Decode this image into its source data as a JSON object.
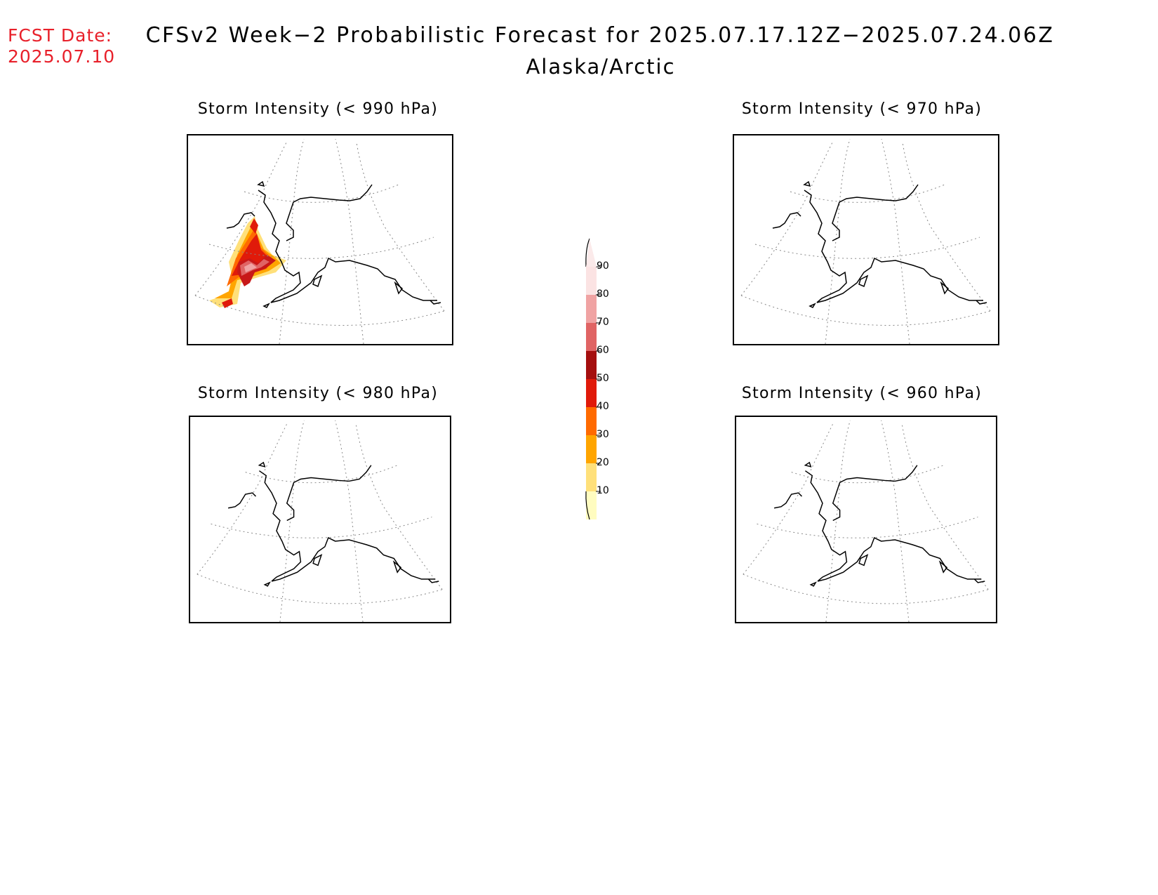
{
  "header": {
    "fcst_label": "FCST Date:",
    "fcst_date": "2025.07.10",
    "title": "CFSv2 Week−2 Probabilistic Forecast for 2025.07.17.12Z−2025.07.24.06Z",
    "subtitle": "Alaska/Arctic",
    "fcst_color": "#e8202a"
  },
  "panels": [
    {
      "title": "Storm Intensity (< 990 hPa)",
      "has_shading": true
    },
    {
      "title": "Storm Intensity (< 970 hPa)",
      "has_shading": false
    },
    {
      "title": "Storm Intensity (< 980 hPa)",
      "has_shading": false
    },
    {
      "title": "Storm Intensity (< 960 hPa)",
      "has_shading": false
    }
  ],
  "colorbar": {
    "labels": [
      "90",
      "80",
      "70",
      "60",
      "50",
      "40",
      "30",
      "20",
      "10"
    ],
    "colors": [
      "#fbe3e3",
      "#f0a3a3",
      "#e06464",
      "#a50f0f",
      "#e01a0a",
      "#ff6a00",
      "#ffa500",
      "#ffe07a",
      "#fffcc0"
    ]
  }
}
